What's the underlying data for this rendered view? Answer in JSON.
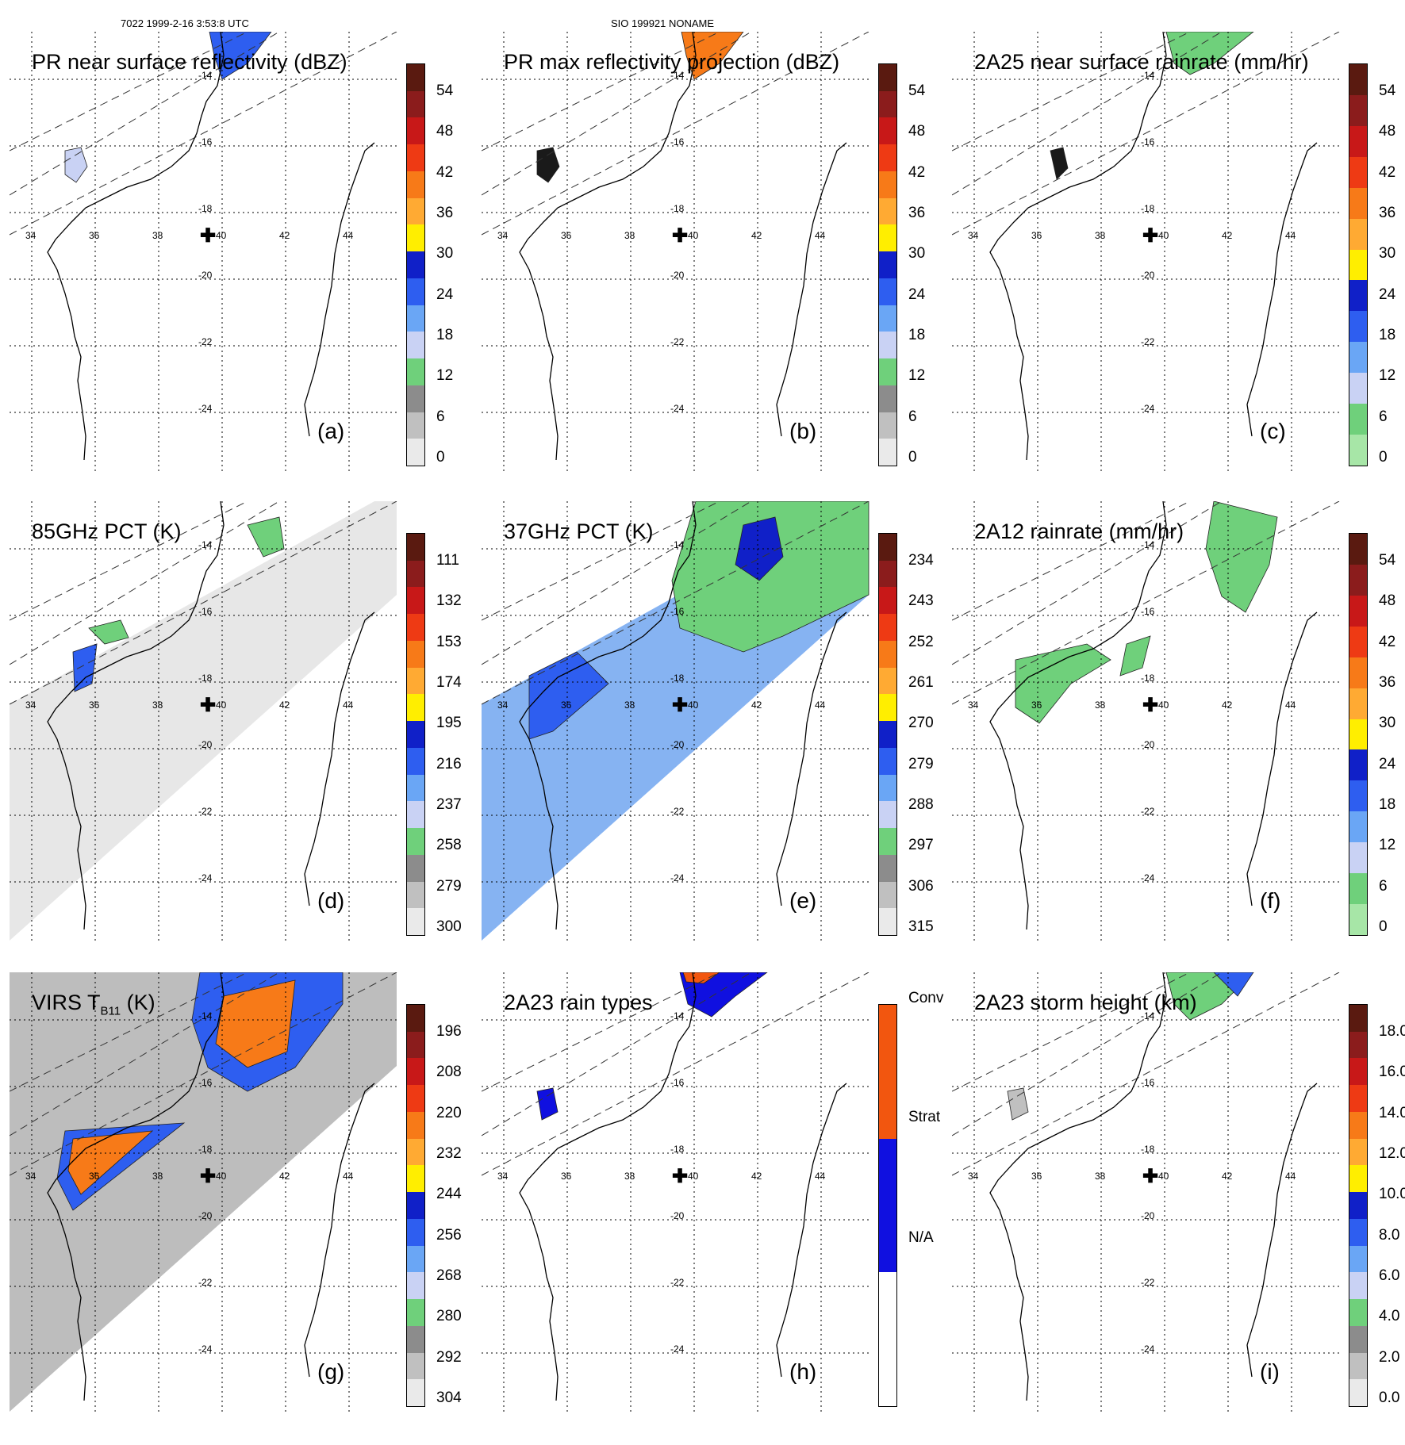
{
  "header": {
    "orbit_time": "7022 1999-2-16 3:53:8 UTC",
    "storm": "SIO 199921 NONAME"
  },
  "map": {
    "lat_labels": [
      "-14",
      "-16",
      "-18",
      "-20",
      "-22",
      "-24"
    ],
    "lon_labels": [
      "34",
      "36",
      "38",
      "40",
      "42",
      "44"
    ]
  },
  "panels": [
    {
      "id": "a",
      "title": "PR near surface reflectivity (dBZ)",
      "label": "(a)",
      "ticks": [
        "54",
        "48",
        "42",
        "36",
        "30",
        "24",
        "18",
        "12",
        "6",
        "0"
      ],
      "colors": [
        "#5a1a10",
        "#8b1c1c",
        "#c81818",
        "#ee3a14",
        "#f77a18",
        "#ffaa33",
        "#ffee00",
        "#1020c8",
        "#2e5ef0",
        "#6aa6f5",
        "#c9d2f4",
        "#6fd07b",
        "#8c8c8c",
        "#c0c0c0",
        "#eaeaea"
      ]
    },
    {
      "id": "b",
      "title": "PR max reflectivity projection (dBZ)",
      "label": "(b)",
      "ticks": [
        "54",
        "48",
        "42",
        "36",
        "30",
        "24",
        "18",
        "12",
        "6",
        "0"
      ],
      "colors": [
        "#5a1a10",
        "#8b1c1c",
        "#c81818",
        "#ee3a14",
        "#f77a18",
        "#ffaa33",
        "#ffee00",
        "#1020c8",
        "#2e5ef0",
        "#6aa6f5",
        "#c9d2f4",
        "#6fd07b",
        "#8c8c8c",
        "#c0c0c0",
        "#eaeaea"
      ]
    },
    {
      "id": "c",
      "title": "2A25 near surface rainrate (mm/hr)",
      "label": "(c)",
      "ticks": [
        "54",
        "48",
        "42",
        "36",
        "30",
        "24",
        "18",
        "12",
        "6",
        "0"
      ],
      "colors": [
        "#5a1a10",
        "#8b1c1c",
        "#c81818",
        "#ee3a14",
        "#f77a18",
        "#ffaa33",
        "#ffee00",
        "#1020c8",
        "#2e5ef0",
        "#6aa6f5",
        "#c9d2f4",
        "#6fd07b",
        "#a7e6a7"
      ]
    },
    {
      "id": "d",
      "title": "85GHz PCT (K)",
      "label": "(d)",
      "ticks": [
        "111",
        "132",
        "153",
        "174",
        "195",
        "216",
        "237",
        "258",
        "279",
        "300"
      ],
      "colors": [
        "#5a1a10",
        "#8b1c1c",
        "#c81818",
        "#ee3a14",
        "#f77a18",
        "#ffaa33",
        "#ffee00",
        "#1020c8",
        "#2e5ef0",
        "#6aa6f5",
        "#c9d2f4",
        "#6fd07b",
        "#8c8c8c",
        "#c0c0c0",
        "#eaeaea"
      ]
    },
    {
      "id": "e",
      "title": "37GHz PCT (K)",
      "label": "(e)",
      "ticks": [
        "234",
        "243",
        "252",
        "261",
        "270",
        "279",
        "288",
        "297",
        "306",
        "315"
      ],
      "colors": [
        "#5a1a10",
        "#8b1c1c",
        "#c81818",
        "#ee3a14",
        "#f77a18",
        "#ffaa33",
        "#ffee00",
        "#1020c8",
        "#2e5ef0",
        "#6aa6f5",
        "#c9d2f4",
        "#6fd07b",
        "#8c8c8c",
        "#c0c0c0",
        "#eaeaea"
      ]
    },
    {
      "id": "f",
      "title": "2A12 rainrate (mm/hr)",
      "label": "(f)",
      "ticks": [
        "54",
        "48",
        "42",
        "36",
        "30",
        "24",
        "18",
        "12",
        "6",
        "0"
      ],
      "colors": [
        "#5a1a10",
        "#8b1c1c",
        "#c81818",
        "#ee3a14",
        "#f77a18",
        "#ffaa33",
        "#ffee00",
        "#1020c8",
        "#2e5ef0",
        "#6aa6f5",
        "#c9d2f4",
        "#6fd07b",
        "#a7e6a7"
      ]
    },
    {
      "id": "g",
      "title": "VIRS T",
      "title_sub": "B11",
      "title_end": " (K)",
      "label": "(g)",
      "ticks": [
        "196",
        "208",
        "220",
        "232",
        "244",
        "256",
        "268",
        "280",
        "292",
        "304"
      ],
      "colors": [
        "#5a1a10",
        "#8b1c1c",
        "#c81818",
        "#ee3a14",
        "#f77a18",
        "#ffaa33",
        "#ffee00",
        "#1020c8",
        "#2e5ef0",
        "#6aa6f5",
        "#c9d2f4",
        "#6fd07b",
        "#8c8c8c",
        "#c0c0c0",
        "#eaeaea"
      ]
    },
    {
      "id": "h",
      "title": "2A23 rain types",
      "label": "(h)",
      "ticks": [
        "Conv",
        "Strat",
        "N/A"
      ],
      "colors": [
        "#f2560f",
        "#1010e0",
        "#ffffff"
      ]
    },
    {
      "id": "i",
      "title": "2A23 storm height (km)",
      "label": "(i)",
      "ticks": [
        "18.0",
        "16.0",
        "14.0",
        "12.0",
        "10.0",
        "8.0",
        "6.0",
        "4.0",
        "2.0",
        "0.0"
      ],
      "colors": [
        "#5a1a10",
        "#8b1c1c",
        "#c81818",
        "#ee3a14",
        "#f77a18",
        "#ffaa33",
        "#ffee00",
        "#1020c8",
        "#2e5ef0",
        "#6aa6f5",
        "#c9d2f4",
        "#6fd07b",
        "#8c8c8c",
        "#c0c0c0",
        "#eaeaea"
      ]
    }
  ]
}
